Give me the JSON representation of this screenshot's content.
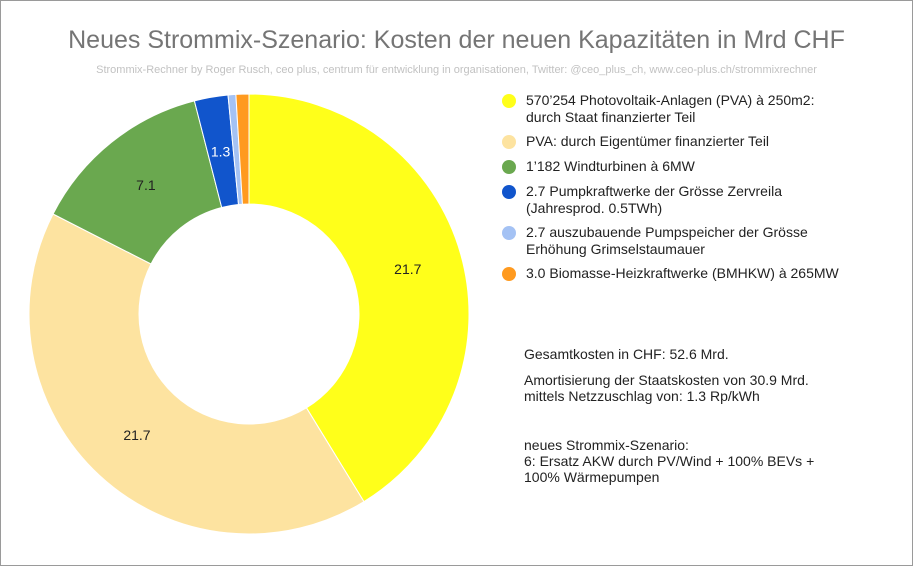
{
  "chart_data": {
    "type": "pie",
    "donut": true,
    "title": "Neues Strommix-Szenario: Kosten der neuen Kapazitäten in Mrd CHF",
    "subtitle": "Strommix-Rechner by Roger Rusch, ceo plus, centrum für entwicklung in organisationen, Twitter: @ceo_plus_ch, www.ceo-plus.ch/strommixrechner",
    "legend_position": "right",
    "slices": [
      {
        "name": "570'254 Photovoltaik-Anlagen (PVA) à 250m2: durch Staat finanzierter Teil",
        "value": 21.7,
        "color": "#ffff1a",
        "label": "21.7"
      },
      {
        "name": "PVA: durch Eigentümer finanzierter Teil",
        "value": 21.7,
        "color": "#fde3a0",
        "label": "21.7"
      },
      {
        "name": "1'182 Windturbinen à 6MW",
        "value": 7.1,
        "color": "#6aa84f",
        "label": "7.1"
      },
      {
        "name": "2.7 Pumpkraftwerke der Grösse Zervreila (Jahresprod. 0.5TWh)",
        "value": 1.3,
        "color": "#1155cc",
        "label": "1.3"
      },
      {
        "name": "2.7 auszubauende Pumpspeicher der Grösse Erhöhung Grimselstaumauer",
        "value": 0.3,
        "color": "#a4c2f4",
        "label": ""
      },
      {
        "name": "3.0 Biomasse-Heizkraftwerke (BMHKW) à 265MW",
        "value": 0.5,
        "color": "#ff9a1f",
        "label": ""
      }
    ]
  },
  "legend": [
    {
      "text": "570’254 Photovoltaik-Anlagen (PVA) à 250m2:\ndurch Staat finanzierter Teil",
      "color": "#ffff1a"
    },
    {
      "text": "PVA: durch Eigentümer finanzierter Teil",
      "color": "#fde3a0"
    },
    {
      "text": "1’182 Windturbinen à 6MW",
      "color": "#6aa84f"
    },
    {
      "text": "2.7 Pumpkraftwerke der Grösse Zervreila\n(Jahresprod. 0.5TWh)",
      "color": "#1155cc"
    },
    {
      "text": "2.7 auszubauende Pumpspeicher der Grösse\nErhöhung Grimselstaumauer",
      "color": "#a4c2f4"
    },
    {
      "text": "3.0 Biomasse-Heizkraftwerke (BMHKW) à 265MW",
      "color": "#ff9a1f"
    }
  ],
  "notes": {
    "total": "Gesamtkosten in CHF: 52.6 Mrd.",
    "amortization": "Amortisierung der Staatskosten von 30.9 Mrd.\nmittels Netzzuschlag von: 1.3 Rp/kWh",
    "scenario": "neues Strommix-Szenario:\n6: Ersatz AKW durch PV/Wind + 100% BEVs +\n100% Wärmepumpen"
  }
}
